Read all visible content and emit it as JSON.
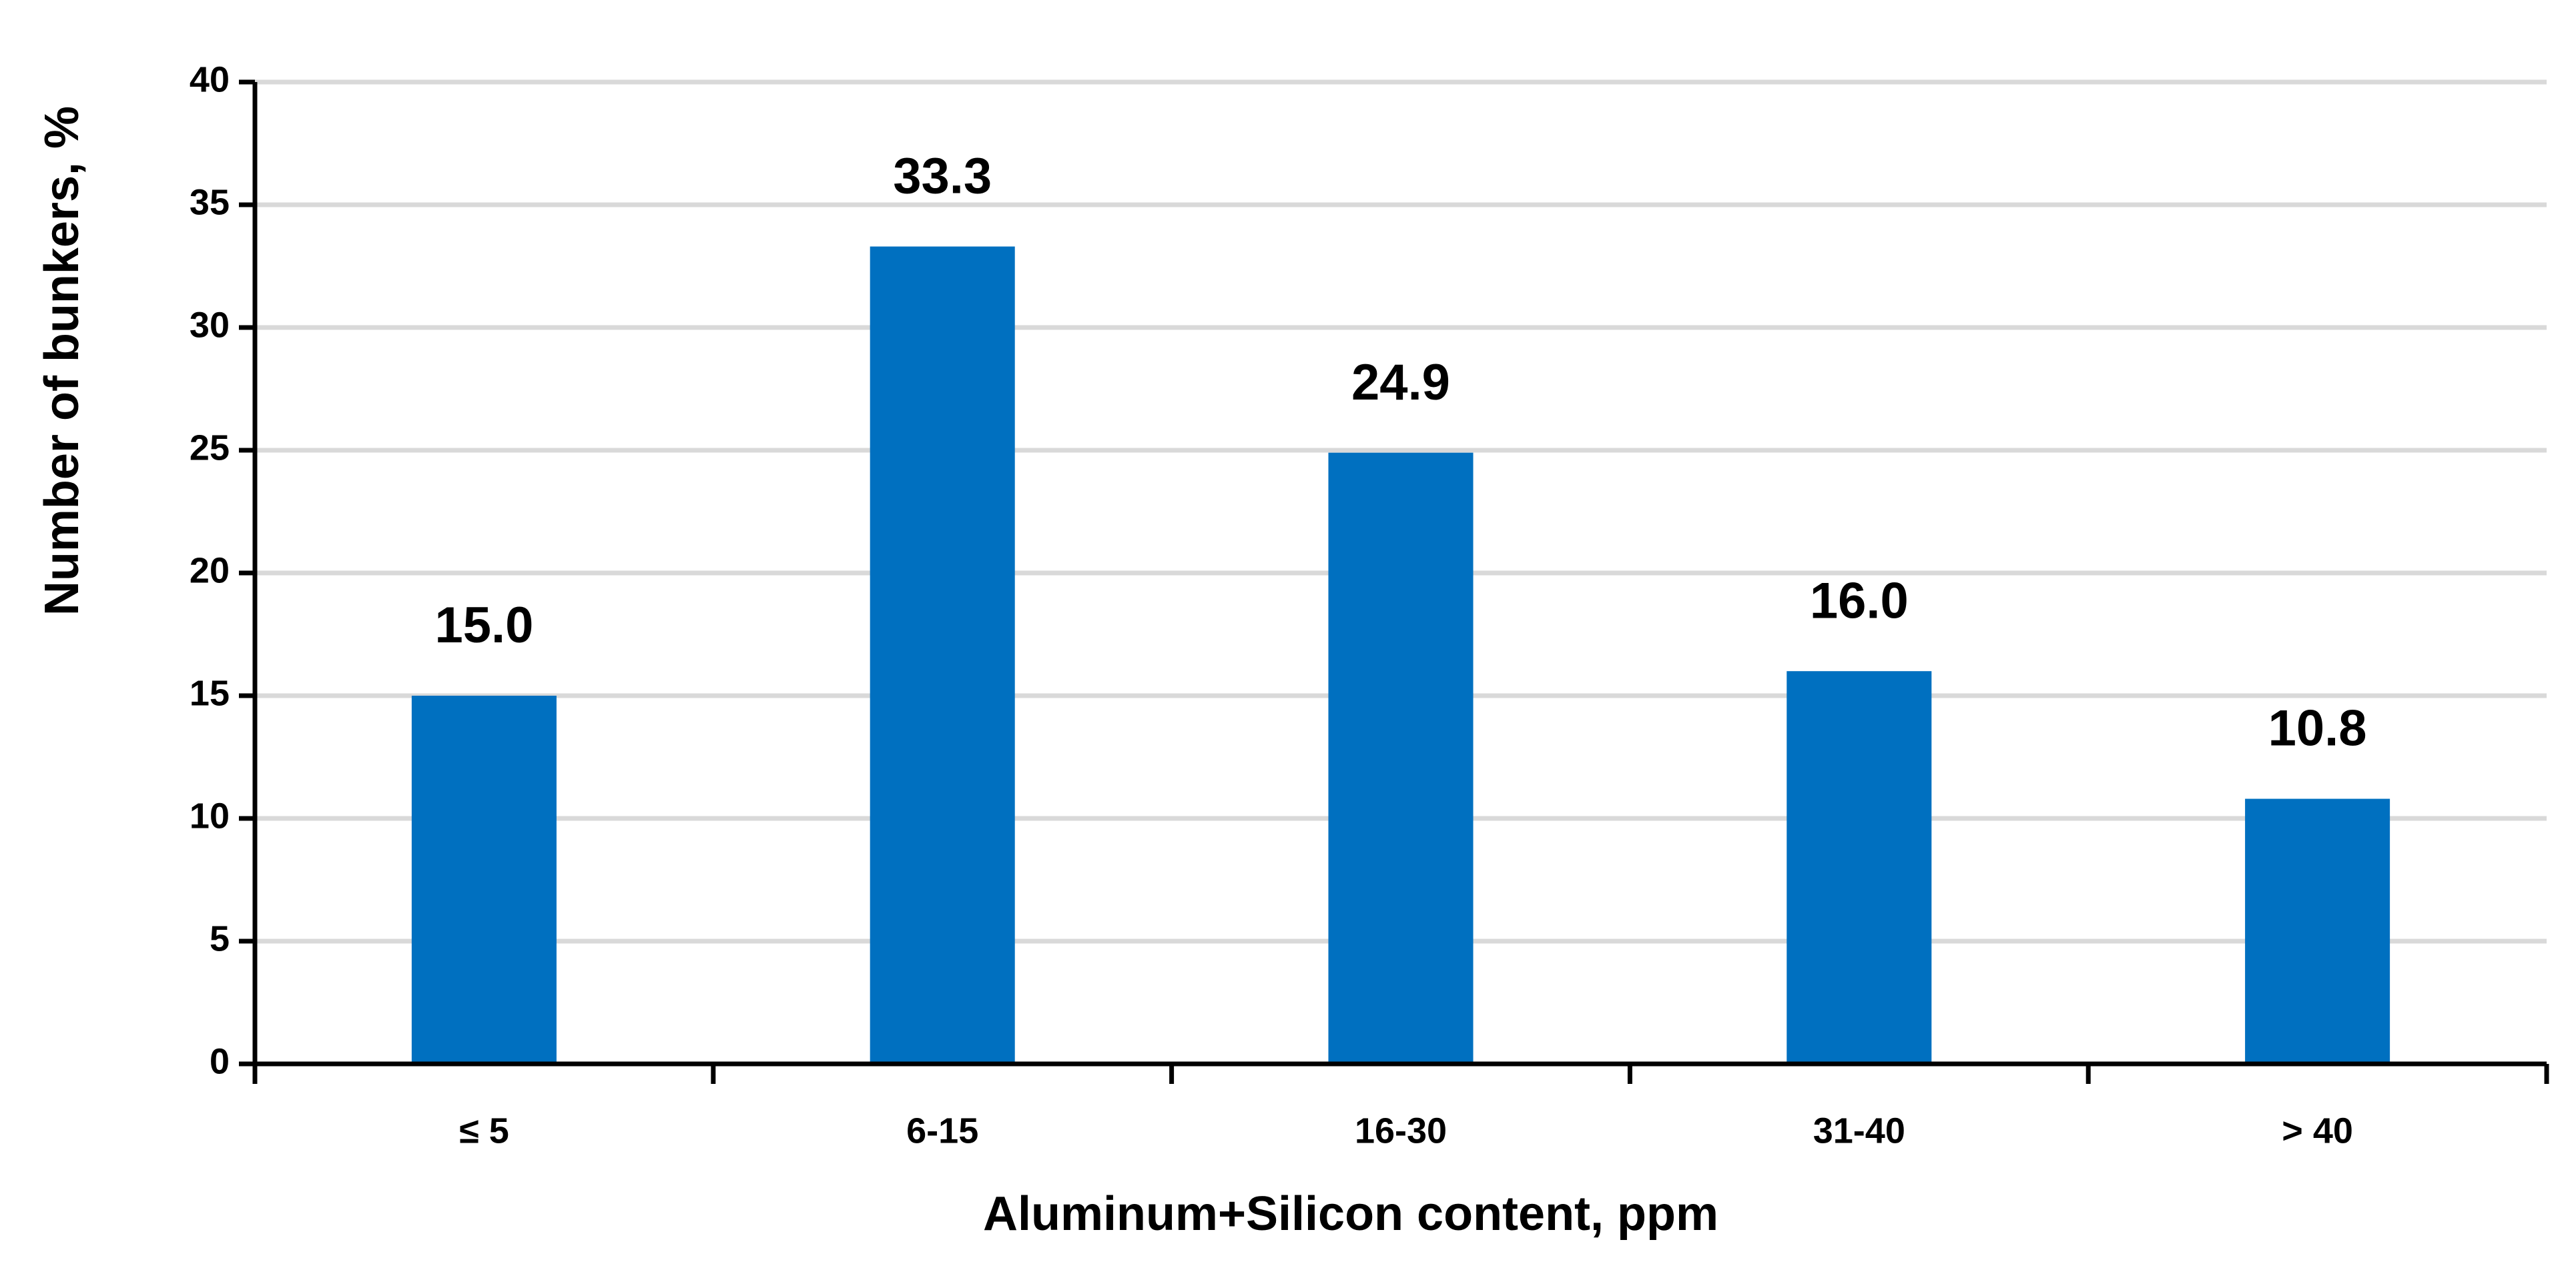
{
  "chart_data": {
    "type": "bar",
    "x_label": "Aluminum+Silicon content, ppm",
    "y_label": "Number of bunkers, %",
    "categories": [
      "≤ 5",
      "6-15",
      "16-30",
      "31-40",
      "> 40"
    ],
    "values": [
      15,
      33.3,
      24.9,
      16,
      10.8
    ],
    "value_labels": [
      "15.0",
      "33.3",
      "24.9",
      "16.0",
      "10.8"
    ],
    "color": "#0070c0",
    "ylim": [
      0,
      40
    ],
    "yticks": [
      0,
      5,
      10,
      15,
      20,
      25,
      30,
      35,
      40
    ],
    "grid": true
  }
}
